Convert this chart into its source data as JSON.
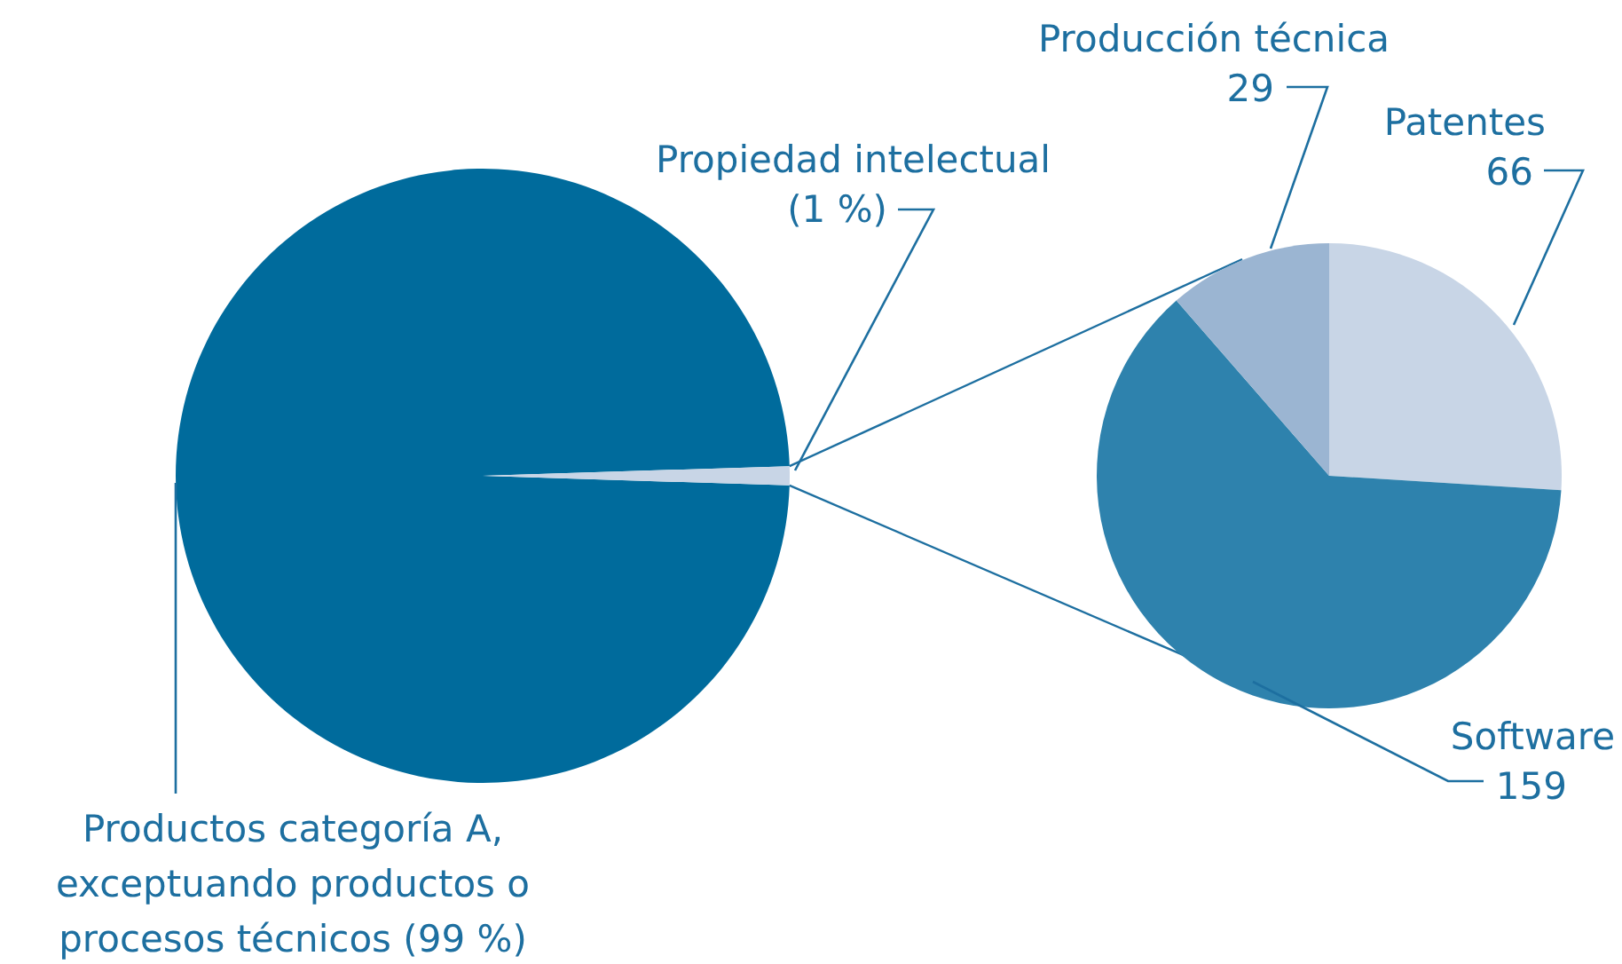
{
  "chart_data": [
    {
      "type": "pie",
      "categories": [
        "Productos categoría A, exceptuando productos o procesos técnicos",
        "Propiedad intelectual"
      ],
      "values": [
        99,
        1
      ],
      "colors": [
        "#006b9c",
        "#c8d5e6"
      ],
      "value_labels": [
        "(99 %)",
        "(1 %)"
      ]
    },
    {
      "type": "pie",
      "categories": [
        "Patentes",
        "Software",
        "Producción técnica"
      ],
      "values": [
        66,
        159,
        29
      ],
      "colors": [
        "#c8d5e6",
        "#2e82ad",
        "#9bb5d2"
      ],
      "data_labels": true
    }
  ]
}
